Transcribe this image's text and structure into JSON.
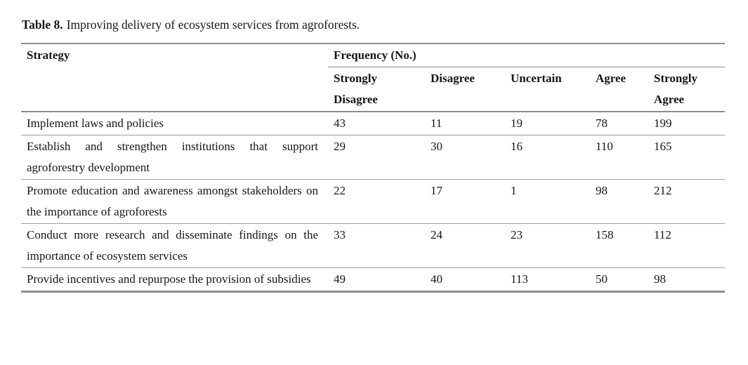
{
  "caption": {
    "label": "Table 8.",
    "text": "Improving delivery of ecosystem services from agroforests."
  },
  "colors": {
    "rule_heavy": "#8c8c8c",
    "rule_light": "#9e9e9e",
    "text": "#161616",
    "background": "#ffffff"
  },
  "table": {
    "strategy_header": "Strategy",
    "group_header": "Frequency (No.)",
    "sub_headers": [
      "Strongly Disagree",
      "Disagree",
      "Uncertain",
      "Agree",
      "Strongly Agree"
    ],
    "rows": [
      {
        "strategy": "Implement laws and policies",
        "values": [
          43,
          11,
          19,
          78,
          199
        ]
      },
      {
        "strategy": "Establish and strengthen institutions that support agroforestry development",
        "values": [
          29,
          30,
          16,
          110,
          165
        ]
      },
      {
        "strategy": "Promote education and awareness amongst stakeholders on the importance of agroforests",
        "values": [
          22,
          17,
          1,
          98,
          212
        ]
      },
      {
        "strategy": "Conduct more research and disseminate findings on the importance of ecosystem services",
        "values": [
          33,
          24,
          23,
          158,
          112
        ]
      },
      {
        "strategy": "Provide incentives and repurpose the provision of subsidies",
        "values": [
          49,
          40,
          113,
          50,
          98
        ]
      }
    ]
  }
}
